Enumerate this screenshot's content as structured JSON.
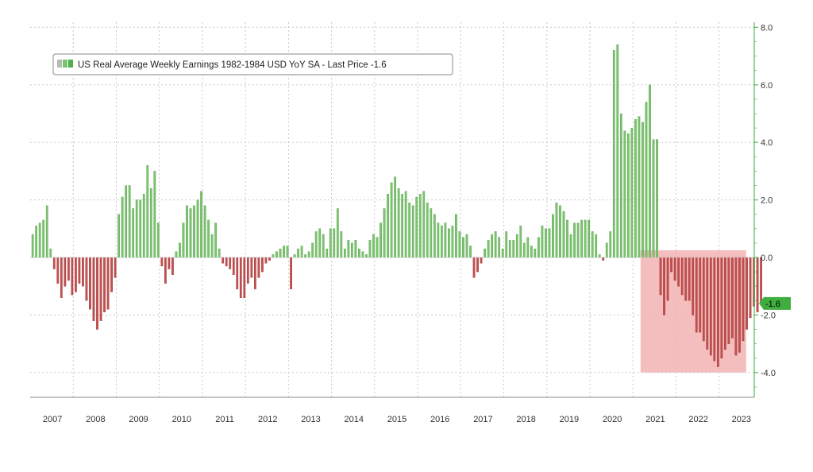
{
  "chart_data": {
    "type": "bar",
    "legend": {
      "label": "US Real Average Weekly Earnings 1982-1984 USD YoY SA - Last Price -1.6",
      "placement": "top-left"
    },
    "last_price": {
      "label": "-1.6",
      "value": -1.6
    },
    "y_axis": {
      "min": -4.8,
      "max": 8.0,
      "ticks": [
        {
          "value": 8.0,
          "label": "8.0"
        },
        {
          "value": 6.0,
          "label": "6.0"
        },
        {
          "value": 4.0,
          "label": "4.0"
        },
        {
          "value": 2.0,
          "label": "2.0"
        },
        {
          "value": 0.0,
          "label": "0.0"
        },
        {
          "value": -2.0,
          "label": "-2.0"
        },
        {
          "value": -4.0,
          "label": "-4.0"
        }
      ],
      "position": "right"
    },
    "x_axis": {
      "years": [
        "2007",
        "2008",
        "2009",
        "2010",
        "2011",
        "2012",
        "2013",
        "2014",
        "2015",
        "2016",
        "2017",
        "2018",
        "2019",
        "2020",
        "2021",
        "2022",
        "2023"
      ]
    },
    "grid": true,
    "highlight_region": {
      "start": "2021-04",
      "end": "2023-05",
      "ymin": -4.0,
      "ymax": 0.25
    },
    "colors": {
      "positive": "#7cc46f",
      "positive_edge": "#4f9e45",
      "negative": "#c25151",
      "negative_edge": "#9e2e2e",
      "highlight": "#f3b3b3",
      "axis": "#5cb85c",
      "grid": "#c8c8c8",
      "last_price_bg": "#3fae3f"
    },
    "series": [
      {
        "start": "2007-01",
        "values": [
          0.8,
          1.1,
          1.2,
          1.3,
          1.8,
          0.3,
          -0.4,
          -0.9,
          -1.4,
          -1.0,
          -0.8,
          -1.3,
          -1.2,
          -0.9,
          -1.0,
          -1.5,
          -1.8,
          -2.2,
          -2.5,
          -2.2,
          -1.9,
          -1.8,
          -1.2,
          -0.7,
          1.5,
          2.1,
          2.5,
          2.5,
          1.7,
          2.0,
          2.0,
          2.2,
          3.2,
          2.4,
          3.0,
          1.2,
          -0.3,
          -0.9,
          -0.4,
          -0.6,
          0.2,
          0.5,
          1.2,
          1.8,
          1.7,
          1.8,
          2.0,
          2.3,
          1.8,
          1.3,
          0.8,
          1.2,
          0.3,
          -0.2,
          -0.3,
          -0.4,
          -0.6,
          -1.1,
          -1.4,
          -1.4,
          -0.9,
          -0.7,
          -1.1,
          -0.7,
          -0.5,
          -0.2,
          -0.1,
          0.1,
          0.2,
          0.3,
          0.4,
          0.4,
          -1.1,
          0.1,
          0.3,
          0.4,
          0.1,
          0.2,
          0.5,
          0.9,
          1.0,
          0.8,
          0.3,
          1.0,
          1.0,
          1.7,
          0.9,
          0.3,
          0.6,
          0.5,
          0.6,
          0.3,
          0.2,
          0.1,
          0.6,
          0.8,
          0.7,
          1.2,
          1.7,
          2.2,
          2.6,
          2.8,
          2.4,
          2.2,
          2.3,
          1.9,
          1.8,
          2.1,
          2.2,
          2.3,
          1.9,
          1.7,
          1.5,
          1.2,
          1.1,
          1.2,
          1.0,
          1.1,
          1.5,
          0.9,
          0.7,
          0.8,
          0.4,
          -0.7,
          -0.5,
          -0.2,
          0.3,
          0.6,
          0.8,
          0.9,
          0.7,
          0.3,
          0.9,
          0.6,
          0.6,
          0.8,
          1.1,
          0.5,
          0.7,
          0.4,
          0.3,
          0.7,
          1.1,
          1.0,
          1.0,
          1.5,
          1.9,
          1.8,
          1.6,
          1.3,
          0.8,
          1.2,
          1.2,
          1.3,
          1.3,
          1.3,
          0.9,
          0.8,
          0.1,
          -0.1,
          0.5,
          0.9,
          7.2,
          7.4,
          5.0,
          4.4,
          4.3,
          4.5,
          4.8,
          4.9,
          4.7,
          5.4,
          6.0,
          4.1,
          4.1,
          -1.3,
          -2.0,
          -1.5,
          -0.5,
          -0.8,
          -1.0,
          -1.3,
          -1.5,
          -1.5,
          -2.0,
          -2.6,
          -2.6,
          -2.9,
          -3.2,
          -3.4,
          -3.6,
          -3.8,
          -3.5,
          -3.2,
          -3.0,
          -2.8,
          -3.4,
          -3.3,
          -2.9,
          -2.5,
          -2.1,
          -1.7,
          -1.9,
          -1.6
        ]
      }
    ]
  }
}
